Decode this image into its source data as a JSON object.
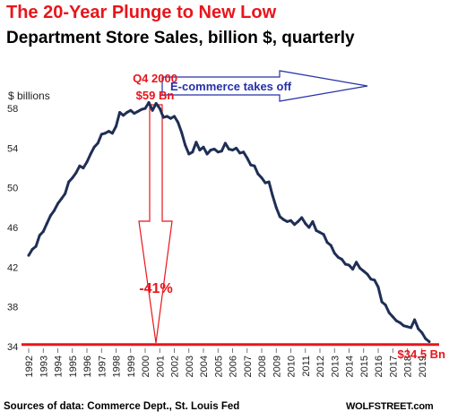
{
  "header": {
    "title": "The 20-Year Plunge to New Low",
    "subtitle": "Department  Store Sales, billion $, quarterly"
  },
  "footer": {
    "source": "Sources of data: Commerce Dept., St. Louis Fed",
    "brand": "WOLFSTREET.com"
  },
  "colors": {
    "line": "#1f2f55",
    "accent": "#e8151b",
    "annotation_blue": "#2330a8"
  },
  "chart_data": {
    "type": "line",
    "title": "Department  Store Sales, billion $, quarterly",
    "ylabel": "$ billions",
    "xlabel": "",
    "ylim": [
      34,
      59
    ],
    "yticks": [
      34,
      38,
      42,
      46,
      50,
      54,
      58
    ],
    "xlim": [
      1992,
      2020
    ],
    "xticks": [
      "1992",
      "1993",
      "1994",
      "1995",
      "1996",
      "1997",
      "1998",
      "1999",
      "2000",
      "2001",
      "2002",
      "2003",
      "2004",
      "2005",
      "2006",
      "2007",
      "2008",
      "2009",
      "2010",
      "2011",
      "2012",
      "2013",
      "2014",
      "2015",
      "2016",
      "2017",
      "2018",
      "2019"
    ],
    "grid": false,
    "series": [
      {
        "name": "",
        "x": [
          1992.0,
          1992.25,
          1992.5,
          1992.75,
          1993.0,
          1993.25,
          1993.5,
          1993.75,
          1994.0,
          1994.25,
          1994.5,
          1994.75,
          1995.0,
          1995.25,
          1995.5,
          1995.75,
          1996.0,
          1996.25,
          1996.5,
          1996.75,
          1997.0,
          1997.25,
          1997.5,
          1997.75,
          1998.0,
          1998.25,
          1998.5,
          1998.75,
          1999.0,
          1999.25,
          1999.5,
          1999.75,
          2000.0,
          2000.25,
          2000.5,
          2000.75,
          2001.0,
          2001.25,
          2001.5,
          2001.75,
          2002.0,
          2002.25,
          2002.5,
          2002.75,
          2003.0,
          2003.25,
          2003.5,
          2003.75,
          2004.0,
          2004.25,
          2004.5,
          2004.75,
          2005.0,
          2005.25,
          2005.5,
          2005.75,
          2006.0,
          2006.25,
          2006.5,
          2006.75,
          2007.0,
          2007.25,
          2007.5,
          2007.75,
          2008.0,
          2008.25,
          2008.5,
          2008.75,
          2009.0,
          2009.25,
          2009.5,
          2009.75,
          2010.0,
          2010.25,
          2010.5,
          2010.75,
          2011.0,
          2011.25,
          2011.5,
          2011.75,
          2012.0,
          2012.25,
          2012.5,
          2012.75,
          2013.0,
          2013.25,
          2013.5,
          2013.75,
          2014.0,
          2014.25,
          2014.5,
          2014.75,
          2015.0,
          2015.25,
          2015.5,
          2015.75,
          2016.0,
          2016.25,
          2016.5,
          2016.75,
          2017.0,
          2017.25,
          2017.5,
          2017.75,
          2018.0,
          2018.25,
          2018.5,
          2018.75,
          2019.0,
          2019.25,
          2019.5
        ],
        "values": [
          43.2,
          43.8,
          44.1,
          45.2,
          45.6,
          46.4,
          47.2,
          47.7,
          48.4,
          48.9,
          49.4,
          50.6,
          51.0,
          51.5,
          52.2,
          52.0,
          52.6,
          53.4,
          54.1,
          54.5,
          55.4,
          55.5,
          55.7,
          55.5,
          56.2,
          57.6,
          57.3,
          57.6,
          57.8,
          57.5,
          57.7,
          57.9,
          58.0,
          58.6,
          57.8,
          58.5,
          58.0,
          57.1,
          57.2,
          57.0,
          57.2,
          56.6,
          55.6,
          54.3,
          53.4,
          53.6,
          54.6,
          53.8,
          54.1,
          53.4,
          53.8,
          53.9,
          53.6,
          53.7,
          54.5,
          53.9,
          53.8,
          54.0,
          53.5,
          53.6,
          53.0,
          52.3,
          52.2,
          51.4,
          51.0,
          50.5,
          50.6,
          49.2,
          48.0,
          47.1,
          46.8,
          46.6,
          46.7,
          46.3,
          46.6,
          47.0,
          46.4,
          46.0,
          46.6,
          45.7,
          45.5,
          45.3,
          44.5,
          44.2,
          43.4,
          43.0,
          42.8,
          42.3,
          42.2,
          41.8,
          42.5,
          41.9,
          41.6,
          41.3,
          40.8,
          40.7,
          40.0,
          38.5,
          38.2,
          37.4,
          37.0,
          36.6,
          36.4,
          36.1,
          36.0,
          35.9,
          36.7,
          35.8,
          35.4,
          34.8,
          34.5
        ]
      }
    ],
    "reference_line": {
      "y": 34.2
    },
    "annotations": [
      {
        "text": "Q4 2000",
        "x": 2000.75,
        "y": 58.6
      },
      {
        "text": "$59 Bn",
        "x": 2000.75,
        "y": 58.6
      },
      {
        "text": "E-commerce takes off",
        "x": 2000.75,
        "y": 58.6
      },
      {
        "text": "-41%",
        "x": 2000.75,
        "y": 40.5
      },
      {
        "text": "$34.5 Bn",
        "x": 2019.5,
        "y": 34.5
      }
    ]
  }
}
